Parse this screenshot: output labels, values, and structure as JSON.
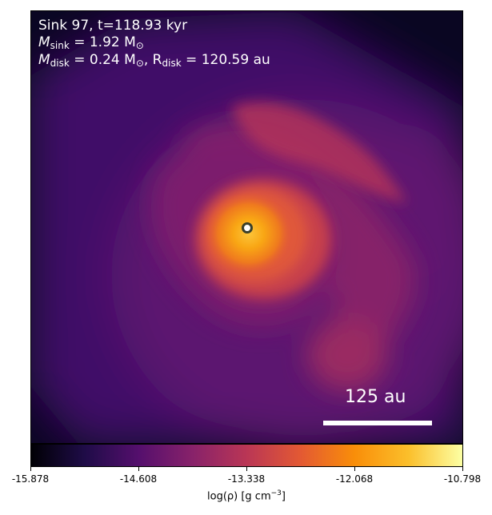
{
  "figure": {
    "info_line1": "Sink 97, t=118.93 kyr",
    "m_sink_label": "M",
    "m_sink_sub": "sink",
    "m_sink_value": " = 1.92 M",
    "m_sink_unit_sub": "⊙",
    "m_disk_label": "M",
    "m_disk_sub": "disk",
    "m_disk_value": " = 0.24 M",
    "m_disk_unit_sub": "⊙",
    "r_disk_sep": ", R",
    "r_disk_sub": "disk",
    "r_disk_value": " = 120.59 au",
    "scale_bar_label": "125 au"
  },
  "colorbar": {
    "ticks": [
      "-15.878",
      "-14.608",
      "-13.338",
      "-12.068",
      "-10.798"
    ],
    "label_main": "log(ρ) [g cm",
    "label_sup": "−3",
    "label_end": "]",
    "colormap": "inferno",
    "stops": [
      "#000004",
      "#1f0c48",
      "#550f6d",
      "#88226a",
      "#ba3655",
      "#e35933",
      "#f98e09",
      "#fbbf2b",
      "#fcffa4"
    ]
  },
  "sink_marker": {
    "color": "#ffffff",
    "ring_color": "#3a3f2a"
  }
}
